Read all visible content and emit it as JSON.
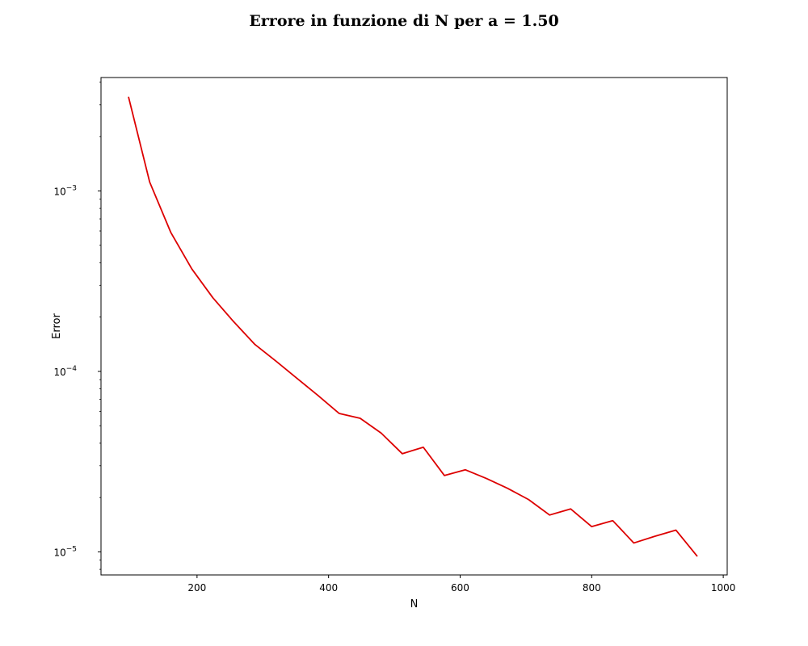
{
  "chart_data": {
    "type": "line",
    "title": "Errore in funzione di N per a = 1.50",
    "xlabel": "N",
    "ylabel": "Error",
    "yscale": "log",
    "xlim": [
      54,
      1006
    ],
    "ylim": [
      7.45e-06,
      0.00425
    ],
    "x_ticks": [
      "200",
      "400",
      "600",
      "800",
      "1000"
    ],
    "y_ticks": [
      {
        "base": "10",
        "exp": "−5"
      },
      {
        "base": "10",
        "exp": "−4"
      },
      {
        "base": "10",
        "exp": "−3"
      }
    ],
    "grid": false,
    "line_color": "#dd0000",
    "series": [
      {
        "x": [
          96,
          128,
          160,
          192,
          224,
          256,
          288,
          320,
          352,
          384,
          416,
          448,
          480,
          512,
          544,
          576,
          608,
          640,
          672,
          704,
          736,
          768,
          800,
          832,
          864,
          896,
          928,
          960
        ],
        "y": [
          0.0033,
          0.00112,
          0.00059,
          0.00037,
          0.000256,
          0.000188,
          0.000141,
          0.000114,
          9.15e-05,
          7.35e-05,
          5.85e-05,
          5.5e-05,
          4.55e-05,
          3.5e-05,
          3.8e-05,
          2.65e-05,
          2.85e-05,
          2.55e-05,
          2.25e-05,
          1.95e-05,
          1.6e-05,
          1.73e-05,
          1.38e-05,
          1.49e-05,
          1.12e-05,
          1.22e-05,
          1.32e-05,
          9.5e-06
        ]
      }
    ]
  }
}
